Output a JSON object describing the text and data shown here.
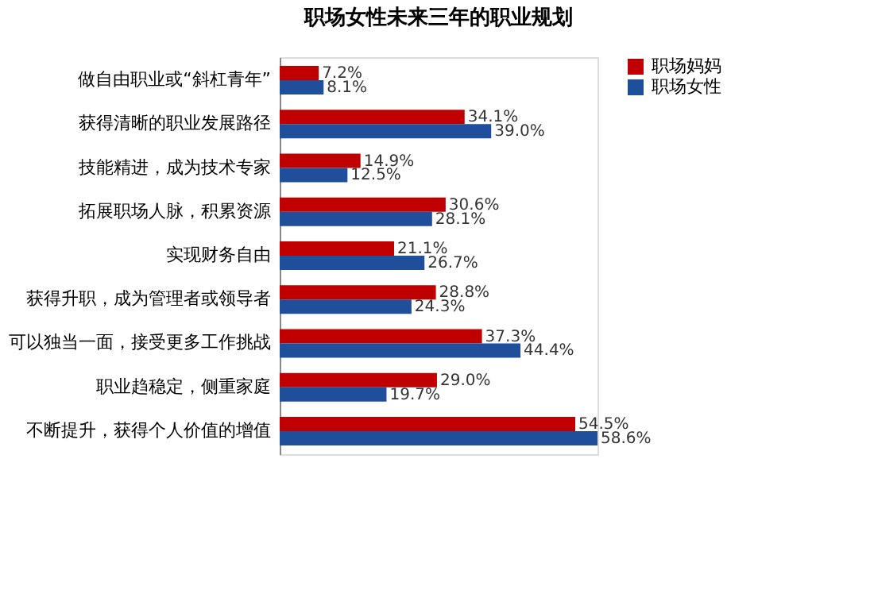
{
  "chart_data": {
    "type": "bar",
    "orientation": "horizontal",
    "title": "职场女性未来三年的职业规划",
    "categories": [
      "做自由职业或“斜杠青年”",
      "获得清晰的职业发展路径",
      "技能精进，成为技术专家",
      "拓展职场人脉，积累资源",
      "实现财务自由",
      "获得升职，成为管理者或领导者",
      "可以独当一面，接受更多工作挑战",
      "职业趋稳定，侧重家庭",
      "不断提升，获得个人价值的增值"
    ],
    "series": [
      {
        "name": "职场妈妈",
        "color": "#c00000",
        "values": [
          7.2,
          34.1,
          14.9,
          30.6,
          21.1,
          28.8,
          37.3,
          29.0,
          54.5
        ],
        "value_labels": [
          "7.2%",
          "34.1%",
          "14.9%",
          "30.6%",
          "21.1%",
          "28.8%",
          "37.3%",
          "29.0%",
          "54.5%"
        ]
      },
      {
        "name": "职场女性",
        "color": "#1f4e9a",
        "values": [
          8.1,
          39.0,
          12.5,
          28.1,
          26.7,
          24.3,
          44.4,
          19.7,
          58.6
        ],
        "value_labels": [
          "8.1%",
          "39.0%",
          "12.5%",
          "28.1%",
          "26.7%",
          "24.3%",
          "44.4%",
          "19.7%",
          "58.6%"
        ]
      }
    ],
    "legend": "right",
    "grid": false
  }
}
